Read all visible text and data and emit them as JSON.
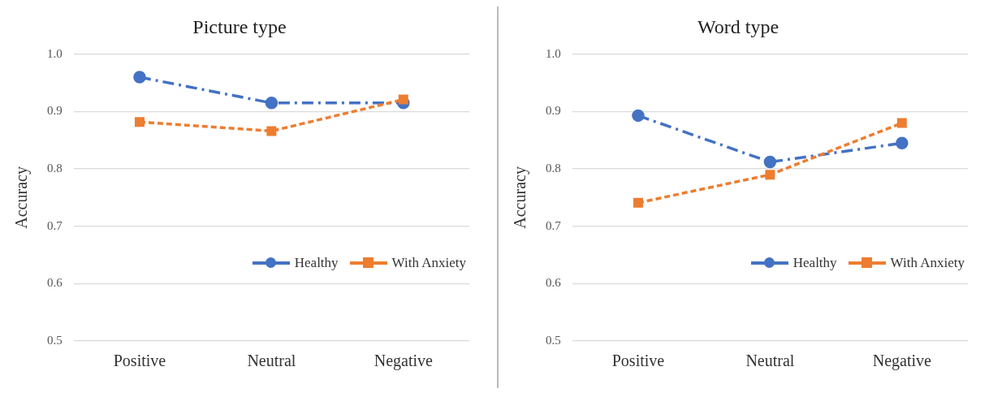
{
  "chart_data": [
    {
      "type": "line",
      "title": "Picture type",
      "ylabel": "Accuracy",
      "categories": [
        "Positive",
        "Neutral",
        "Negative"
      ],
      "ylim": [
        0.5,
        1.0
      ],
      "yticks": [
        {
          "value": 0.5,
          "label": "0.5"
        },
        {
          "value": 0.6,
          "label": "0.6"
        },
        {
          "value": 0.7,
          "label": "0.7"
        },
        {
          "value": 0.8,
          "label": "0.8"
        },
        {
          "value": 0.9,
          "label": "0.9"
        },
        {
          "value": 1.0,
          "label": "1.0"
        }
      ],
      "grid": "y",
      "legend": "bottom right",
      "series": [
        {
          "name": "Healthy",
          "color": "#4472c4",
          "values": [
            0.96,
            0.915,
            0.915
          ],
          "marker": "circle",
          "line_style": "dashed"
        },
        {
          "name": "With Anxiety",
          "color": "#ed7d31",
          "values": [
            0.882,
            0.866,
            0.921
          ],
          "marker": "square",
          "line_style": "dashed"
        }
      ]
    },
    {
      "type": "line",
      "title": "Word type",
      "ylabel": "Accuracy",
      "categories": [
        "Positive",
        "Neutral",
        "Negative"
      ],
      "ylim": [
        0.5,
        1.0
      ],
      "yticks": [
        {
          "value": 0.5,
          "label": "0.5"
        },
        {
          "value": 0.6,
          "label": "0.6"
        },
        {
          "value": 0.7,
          "label": "0.7"
        },
        {
          "value": 0.8,
          "label": "0.8"
        },
        {
          "value": 0.9,
          "label": "0.9"
        },
        {
          "value": 1.0,
          "label": "1.0"
        }
      ],
      "grid": "y",
      "legend": "bottom right",
      "series": [
        {
          "name": "Healthy",
          "color": "#4472c4",
          "values": [
            0.893,
            0.812,
            0.845
          ],
          "marker": "circle",
          "line_style": "dashed"
        },
        {
          "name": "With Anxiety",
          "color": "#ed7d31",
          "values": [
            0.741,
            0.79,
            0.88
          ],
          "marker": "square",
          "line_style": "dashed"
        }
      ]
    }
  ]
}
